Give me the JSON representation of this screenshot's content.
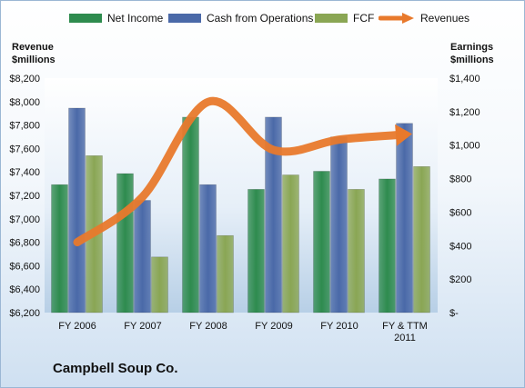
{
  "legend": {
    "net_income": "Net Income",
    "cash_from_operations": "Cash from Operations",
    "fcf": "FCF",
    "revenues": "Revenues"
  },
  "axis": {
    "left_title_line1": "Revenue",
    "left_title_line2": "$millions",
    "right_title_line1": "Earnings",
    "right_title_line2": "$millions"
  },
  "company": "Campbell Soup Co.",
  "colors": {
    "net_income": "#2e8b4e",
    "cash_from_operations": "#4a69a8",
    "fcf": "#8aa654",
    "revenues": "#e8792c"
  },
  "chart_data": {
    "type": "bar",
    "categories": [
      [
        "FY 2006"
      ],
      [
        "FY 2007"
      ],
      [
        "FY 2008"
      ],
      [
        "FY 2009"
      ],
      [
        "FY 2010"
      ],
      [
        "FY & TTM",
        "2011"
      ]
    ],
    "series": [
      {
        "name": "Net Income",
        "axis": "right",
        "type": "bar",
        "values": [
          764,
          830,
          1167,
          736,
          844,
          798
        ]
      },
      {
        "name": "Cash from Operations",
        "axis": "right",
        "type": "bar",
        "values": [
          1221,
          670,
          764,
          1167,
          1049,
          1130
        ]
      },
      {
        "name": "FCF",
        "axis": "right",
        "type": "bar",
        "values": [
          937,
          332,
          460,
          822,
          736,
          872
        ]
      },
      {
        "name": "Revenues",
        "axis": "left",
        "type": "line",
        "values": [
          6800,
          7190,
          7998,
          7586,
          7676,
          7719
        ]
      }
    ],
    "left_axis": {
      "min": 6200,
      "max": 8200,
      "step": 200,
      "tick_labels": [
        "$6,200",
        "$6,400",
        "$6,600",
        "$6,800",
        "$7,000",
        "$7,200",
        "$7,400",
        "$7,600",
        "$7,800",
        "$8,000",
        "$8,200"
      ]
    },
    "right_axis": {
      "min": 0,
      "max": 1400,
      "step": 200,
      "tick_labels": [
        "$-",
        "$200",
        "$400",
        "$600",
        "$800",
        "$1,000",
        "$1,200",
        "$1,400"
      ]
    },
    "grid": false,
    "legend_position": "top"
  }
}
